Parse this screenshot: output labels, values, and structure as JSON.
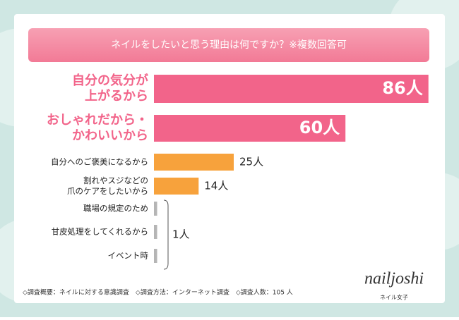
{
  "chart_data": {
    "type": "bar",
    "title": "ネイルをしたいと思う理由は何ですか？※複数回答可",
    "categories": [
      [
        "自分の気分が",
        "上がるから"
      ],
      [
        "おしゃれだから・",
        "かわいいから"
      ],
      [
        "自分へのご褒美になるから"
      ],
      [
        "割れやスジなどの",
        "爪のケアをしたいから"
      ],
      [
        "職場の規定のため"
      ],
      [
        "甘皮処理をしてくれるから"
      ],
      [
        "イベント時"
      ]
    ],
    "values": [
      86,
      60,
      25,
      14,
      1,
      1,
      1
    ],
    "value_labels": [
      "86人",
      "60人",
      "25人",
      "14人",
      null,
      "1人",
      null
    ],
    "colors": [
      "#f2648a",
      "#f2648a",
      "#f7a23c",
      "#f7a23c",
      "#b5b5b5",
      "#b5b5b5",
      "#b5b5b5"
    ],
    "footnote": "◇調査概要：ネイルに対する意識調査　◇調査方法：インターネット調査　◇調査人数：105 人",
    "brand": "nailjoshi",
    "brand_sub": "ネイル女子"
  }
}
